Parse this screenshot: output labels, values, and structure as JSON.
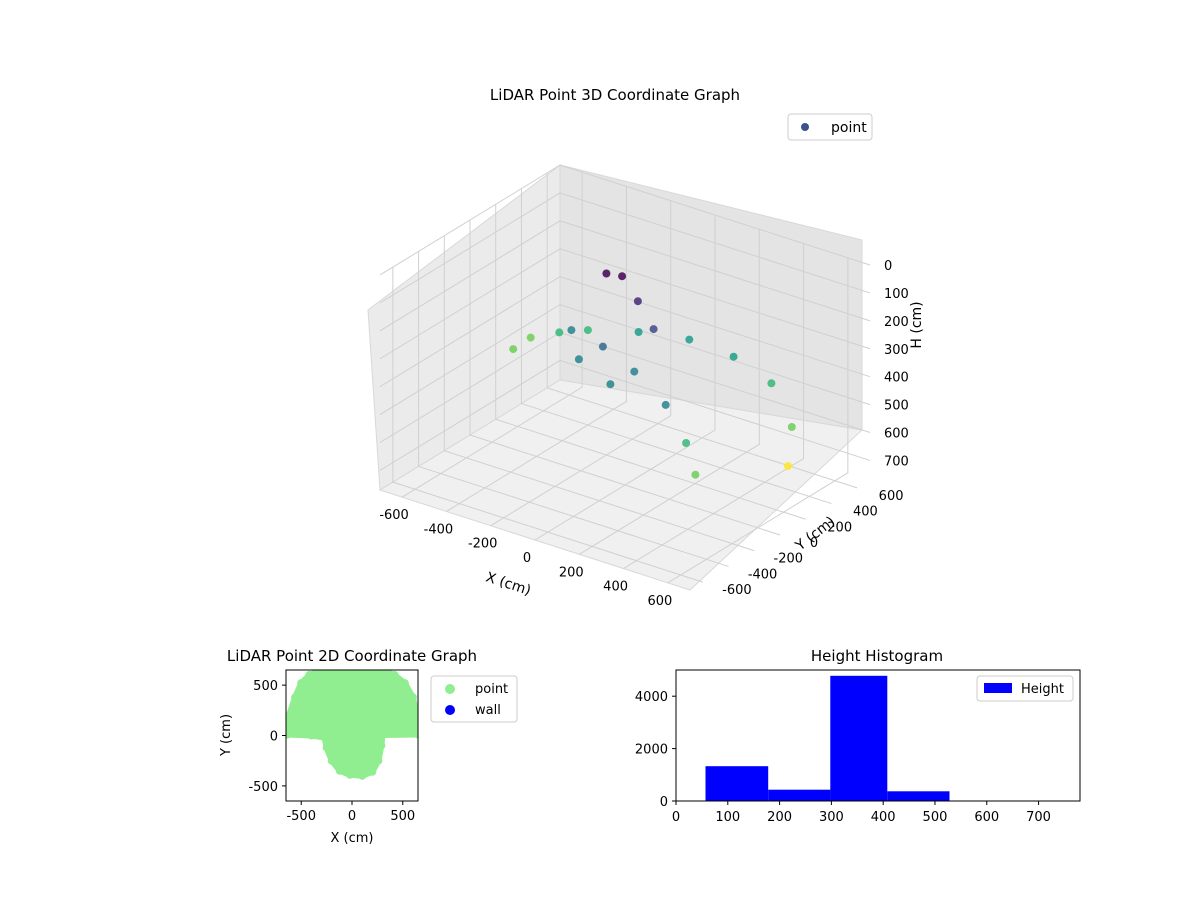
{
  "chart_data": [
    {
      "type": "scatter",
      "projection": "3d",
      "title": "LiDAR Point 3D Coordinate Graph",
      "xlabel": "X (cm)",
      "ylabel": "Y (cm)",
      "zlabel": "H (cm)",
      "xlim": [
        -700,
        700
      ],
      "ylim": [
        -700,
        700
      ],
      "zlim": [
        770,
        0
      ],
      "xticks": [
        -600,
        -400,
        -200,
        0,
        200,
        400,
        600
      ],
      "yticks": [
        -600,
        -400,
        -200,
        0,
        200,
        400,
        600
      ],
      "zticks": [
        0,
        100,
        200,
        300,
        400,
        500,
        600,
        700
      ],
      "colormap": "viridis",
      "grid": true,
      "legend": {
        "position": "upper-right",
        "entries": [
          {
            "label": "point",
            "color": "#3b528b"
          }
        ]
      },
      "series": [
        {
          "name": "point",
          "description_of_shape": "dense curved wall of points",
          "samples": [
            {
              "x": -650,
              "y": 250,
              "h": 520
            },
            {
              "x": -600,
              "y": 300,
              "h": 480
            },
            {
              "x": -500,
              "y": 350,
              "h": 450
            },
            {
              "x": -400,
              "y": 400,
              "h": 430
            },
            {
              "x": -200,
              "y": 450,
              "h": 400
            },
            {
              "x": 0,
              "y": 500,
              "h": 390
            },
            {
              "x": 200,
              "y": 500,
              "h": 400
            },
            {
              "x": 400,
              "y": 450,
              "h": 430
            },
            {
              "x": 550,
              "y": 350,
              "h": 520
            },
            {
              "x": 620,
              "y": 200,
              "h": 600
            },
            {
              "x": -300,
              "y": 100,
              "h": 320
            },
            {
              "x": -100,
              "y": 0,
              "h": 300
            },
            {
              "x": 100,
              "y": -100,
              "h": 310
            },
            {
              "x": 300,
              "y": -200,
              "h": 350
            },
            {
              "x": 450,
              "y": -300,
              "h": 420
            },
            {
              "x": 550,
              "y": -400,
              "h": 480
            },
            {
              "x": -200,
              "y": 200,
              "h": 120
            },
            {
              "x": -100,
              "y": 150,
              "h": 90
            },
            {
              "x": 0,
              "y": 100,
              "h": 140
            },
            {
              "x": 100,
              "y": 50,
              "h": 200
            },
            {
              "x": -150,
              "y": -100,
              "h": 330
            },
            {
              "x": 50,
              "y": -200,
              "h": 340
            }
          ]
        }
      ]
    },
    {
      "type": "scatter",
      "title": "LiDAR Point 2D Coordinate Graph",
      "xlabel": "X (cm)",
      "ylabel": "Y (cm)",
      "xlim": [
        -650,
        650
      ],
      "ylim": [
        -650,
        650
      ],
      "xticks": [
        -500,
        0,
        500
      ],
      "yticks": [
        -500,
        0,
        500
      ],
      "legend": {
        "position": "outside-right",
        "entries": [
          {
            "label": "point",
            "color": "#90ee90"
          },
          {
            "label": "wall",
            "color": "#0000ff"
          }
        ]
      },
      "series": [
        {
          "name": "point",
          "color": "#90ee90",
          "outline": [
            [
              -640,
              10
            ],
            [
              -620,
              200
            ],
            [
              -560,
              380
            ],
            [
              -500,
              520
            ],
            [
              -420,
              600
            ],
            [
              -300,
              650
            ],
            [
              -100,
              660
            ],
            [
              100,
              660
            ],
            [
              300,
              650
            ],
            [
              420,
              600
            ],
            [
              520,
              520
            ],
            [
              600,
              380
            ],
            [
              640,
              200
            ],
            [
              650,
              10
            ],
            [
              300,
              5
            ],
            [
              290,
              -100
            ],
            [
              260,
              -250
            ],
            [
              200,
              -360
            ],
            [
              100,
              -400
            ],
            [
              -20,
              -390
            ],
            [
              -120,
              -350
            ],
            [
              -200,
              -250
            ],
            [
              -250,
              -120
            ],
            [
              -270,
              -20
            ],
            [
              -400,
              0
            ],
            [
              -640,
              10
            ]
          ]
        },
        {
          "name": "wall",
          "color": "#0000ff",
          "points": []
        }
      ]
    },
    {
      "type": "bar",
      "title": "Height Histogram",
      "xlim": [
        0,
        780
      ],
      "ylim": [
        0,
        5000
      ],
      "xticks": [
        0,
        100,
        200,
        300,
        400,
        500,
        600,
        700
      ],
      "yticks": [
        0,
        2000,
        4000
      ],
      "legend": {
        "position": "top-right",
        "entries": [
          {
            "label": "Height",
            "color": "#0000ff"
          }
        ]
      },
      "series": [
        {
          "name": "Height",
          "color": "#0000ff",
          "bins": [
            {
              "from": 57,
              "to": 178,
              "value": 1330
            },
            {
              "from": 178,
              "to": 298,
              "value": 430
            },
            {
              "from": 298,
              "to": 408,
              "value": 4780
            },
            {
              "from": 408,
              "to": 528,
              "value": 370
            }
          ]
        }
      ]
    }
  ]
}
